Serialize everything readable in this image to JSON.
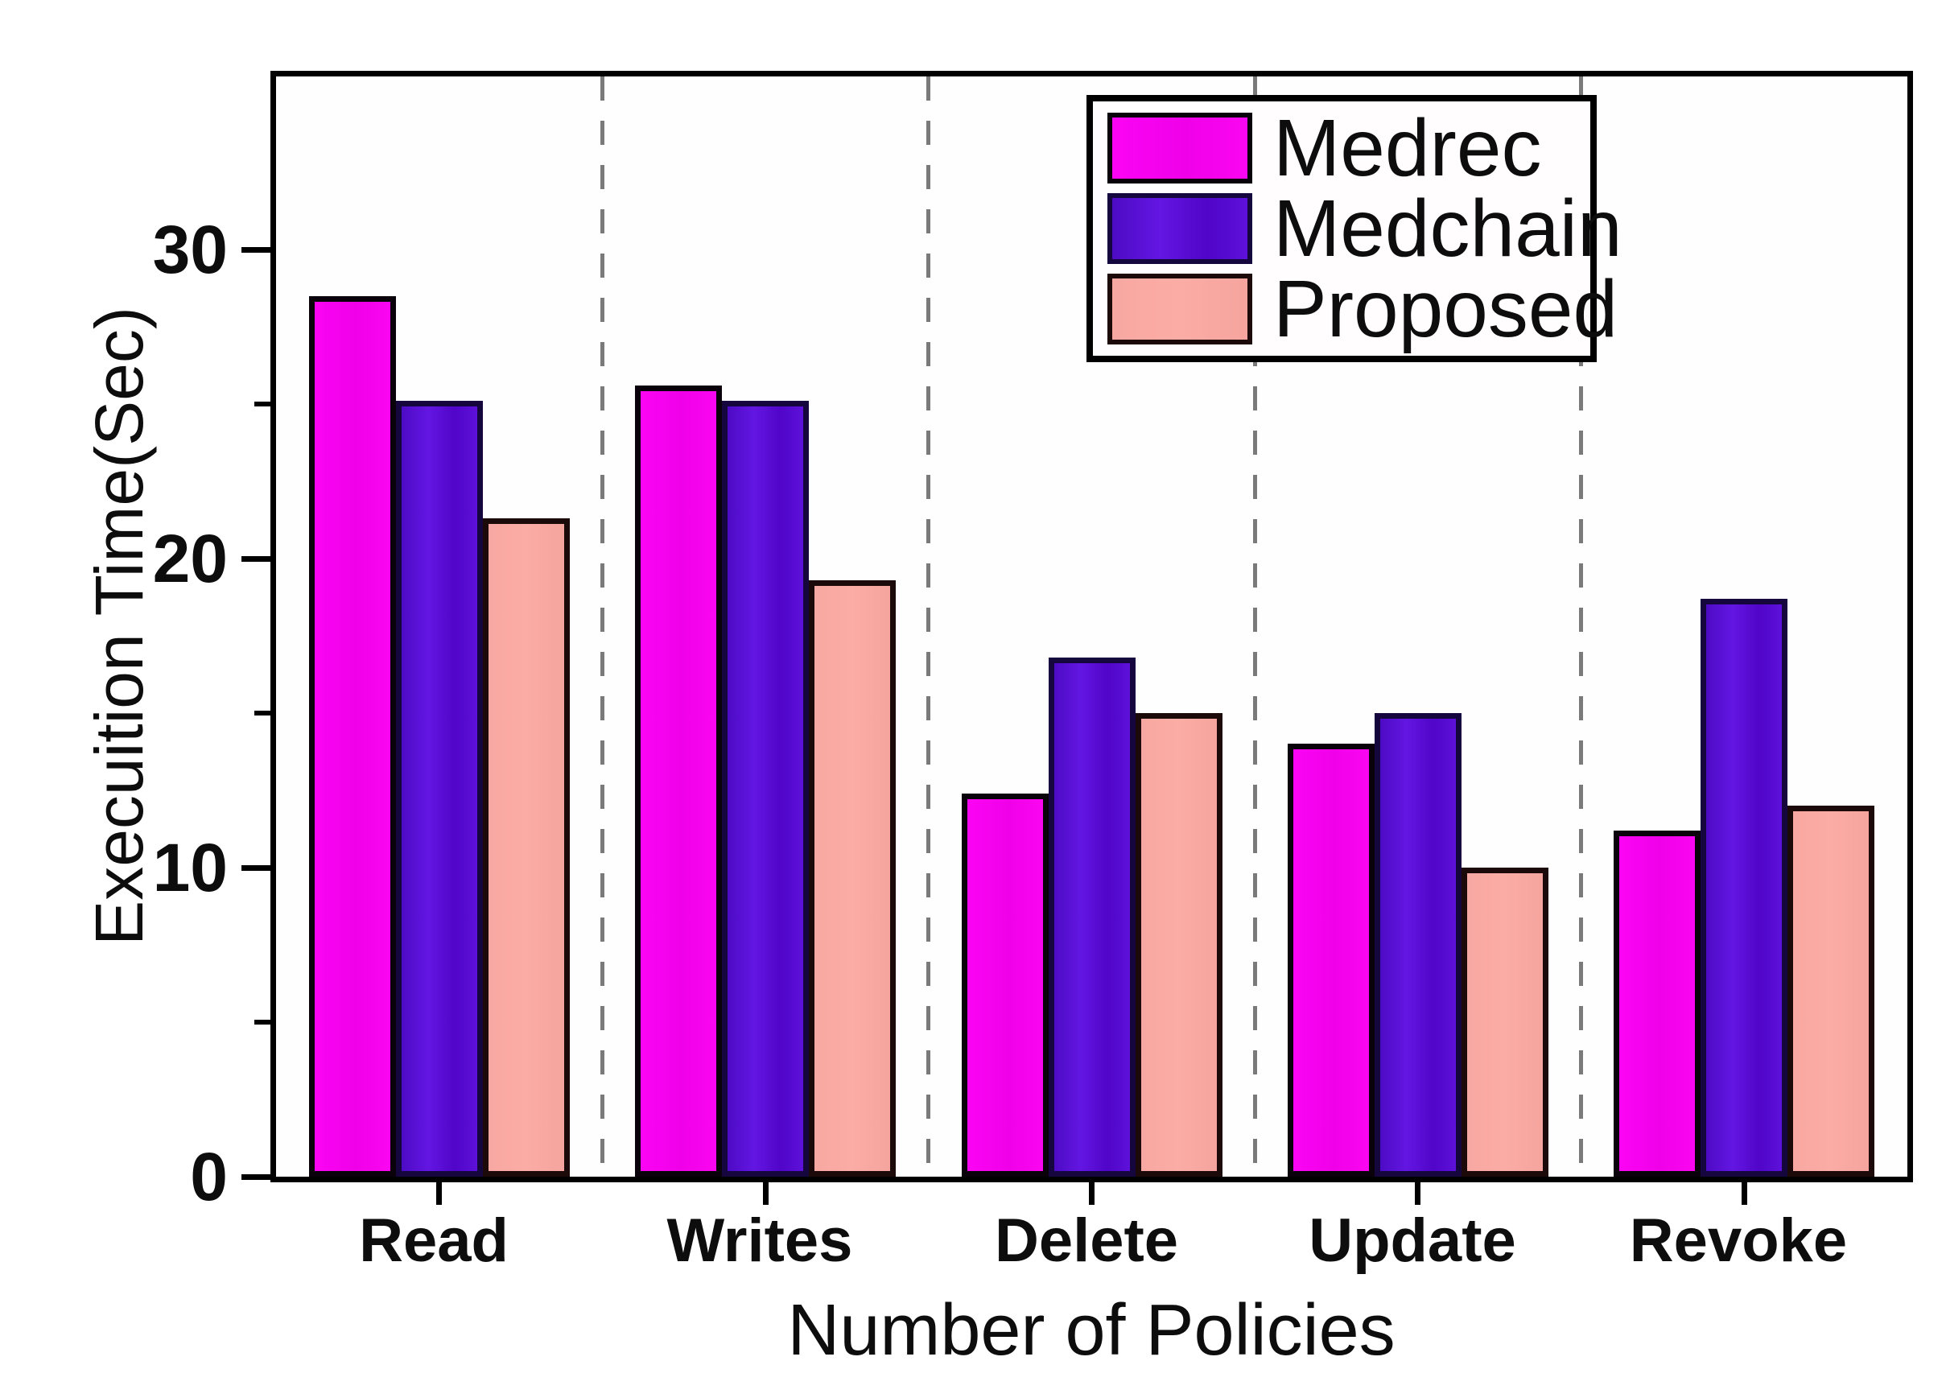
{
  "chart_data": {
    "type": "bar",
    "title": "",
    "xlabel": "Number of Policies",
    "ylabel": "Execuition Time(Sec)",
    "categories": [
      "Read",
      "Writes",
      "Delete",
      "Update",
      "Revoke"
    ],
    "series": [
      {
        "name": "Medrec",
        "fill": "#f802f2",
        "fill_css": "linear-gradient(90deg,#fb04f4 0%,#f000e9 55%,#fb06f1 100%)",
        "border": "#0a020a",
        "values": [
          28.5,
          25.6,
          12.4,
          14.0,
          11.2
        ]
      },
      {
        "name": "Medchain",
        "fill": "#5a0fd5",
        "fill_css": "linear-gradient(90deg,#4d0bc4 0%,#6316e2 35%,#5005c8 70%,#5d11da 100%)",
        "border": "#16063e",
        "values": [
          25.1,
          25.1,
          16.8,
          15.0,
          18.7
        ]
      },
      {
        "name": "Proposed",
        "fill": "#f8a8a2",
        "fill_css": "linear-gradient(90deg,#f8a8a2 0%,#fbaca4 50%,#f5a49e 100%)",
        "border": "#1c0a0a",
        "values": [
          21.3,
          19.3,
          15.0,
          10.0,
          12.0
        ]
      }
    ],
    "ylim": [
      0,
      35.6
    ],
    "yticks": [
      0,
      10,
      20,
      30
    ],
    "yticks_minor": [
      5,
      15,
      25
    ],
    "grid": "vertical dashed separators between category groups",
    "separator_color": "#7a7a7a",
    "legend_position": "top-right-inside",
    "legend_items": [
      "Medrec",
      "Medchain",
      "Proposed"
    ]
  }
}
